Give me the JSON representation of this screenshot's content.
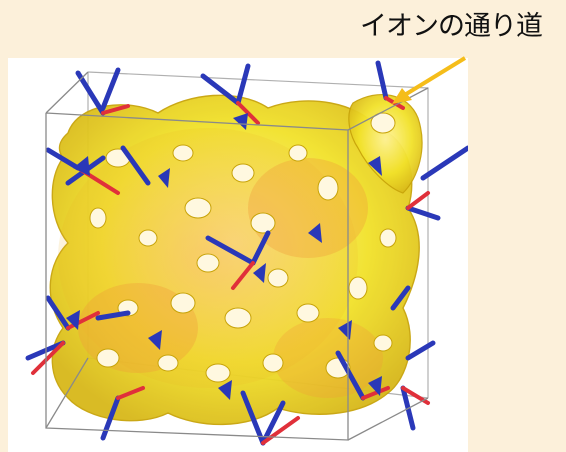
{
  "figure": {
    "callout_label": "イオンの通り道"
  },
  "colors": {
    "background": "#fcf0da",
    "panel": "#ffffff",
    "isosurface_fill": "#f2e22a",
    "isosurface_edge": "#c8a40a",
    "channel_orange": "#f29a38",
    "atom_blue": "#2a38b8",
    "atom_red": "#e0303a",
    "unit_cell_edge": "#9a9a9a",
    "arrow": "#f5bd1a"
  },
  "icons": [
    "ion-channel-structure",
    "unit-cell-box",
    "callout-arrow"
  ]
}
